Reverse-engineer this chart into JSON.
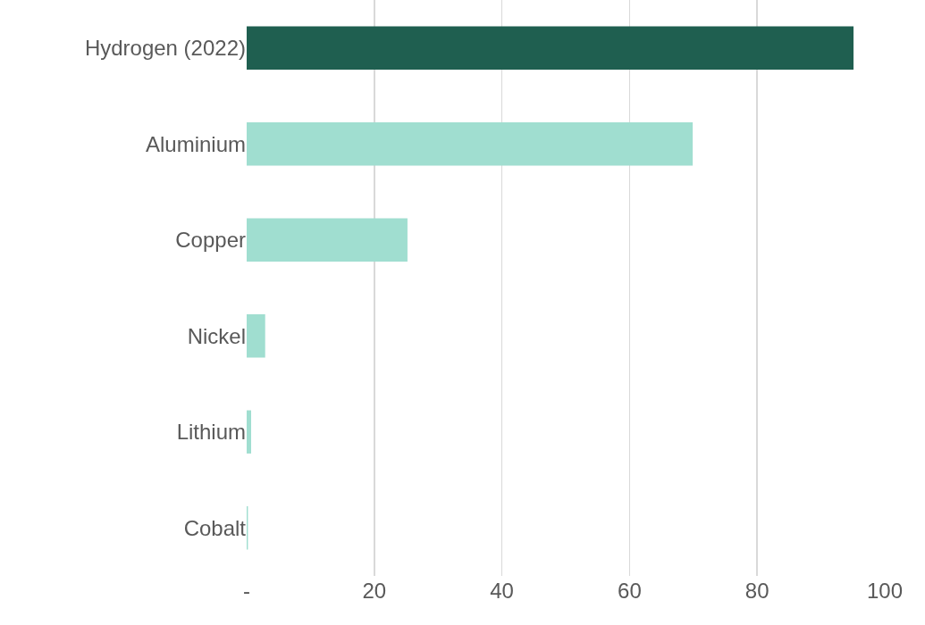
{
  "chart_data": {
    "type": "bar",
    "orientation": "horizontal",
    "categories": [
      "Hydrogen (2022)",
      "Aluminium",
      "Copper",
      "Nickel",
      "Lithium",
      "Cobalt"
    ],
    "values": [
      95.1,
      69.9,
      25.2,
      2.9,
      0.7,
      0.2
    ],
    "colors": [
      "#1f5f50",
      "#a0ded0",
      "#a0ded0",
      "#a0ded0",
      "#a0ded0",
      "#a0ded0"
    ],
    "xlim": [
      0,
      100
    ],
    "xticks": [
      {
        "value": 0,
        "label": "-"
      },
      20,
      40,
      60,
      80,
      100
    ],
    "grid": "x",
    "legend": false
  }
}
